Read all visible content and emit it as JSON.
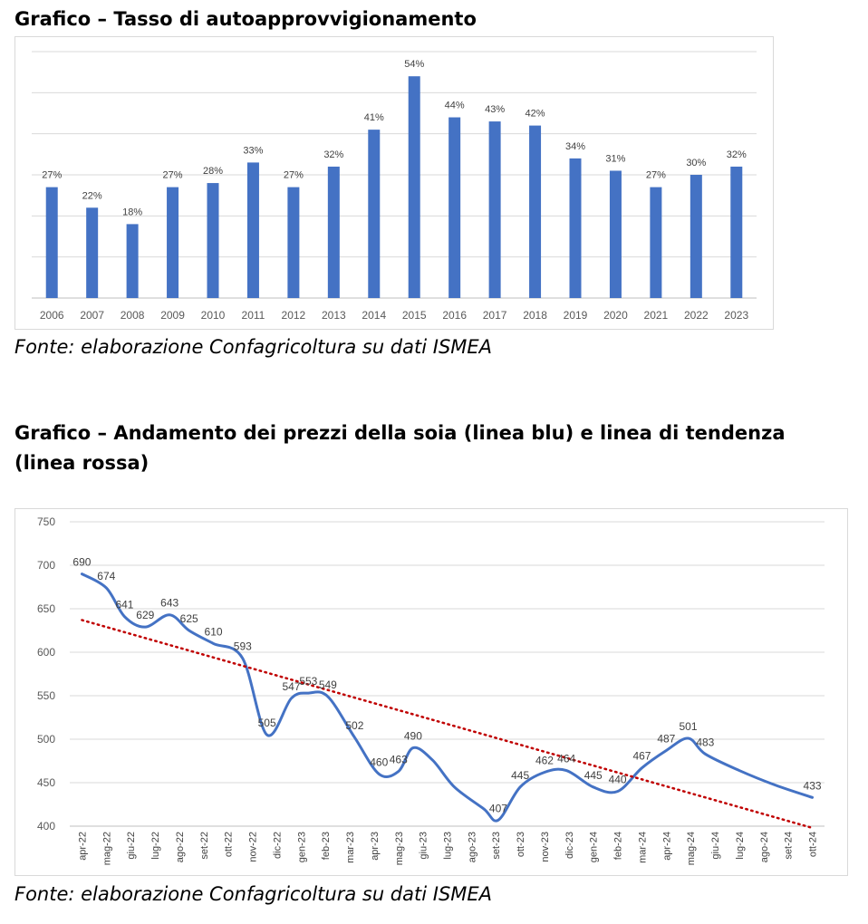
{
  "chart1": {
    "heading": "Grafico – Tasso di autoapprovvigionamento",
    "source": "Fonte: elaborazione Confagricoltura su dati ISMEA",
    "chart_data": {
      "type": "bar",
      "categories": [
        "2006",
        "2007",
        "2008",
        "2009",
        "2010",
        "2011",
        "2012",
        "2013",
        "2014",
        "2015",
        "2016",
        "2017",
        "2018",
        "2019",
        "2020",
        "2021",
        "2022",
        "2023"
      ],
      "values": [
        27,
        22,
        18,
        27,
        28,
        33,
        27,
        32,
        41,
        54,
        44,
        43,
        42,
        34,
        31,
        27,
        30,
        32
      ],
      "data_labels": [
        "27%",
        "22%",
        "18%",
        "27%",
        "28%",
        "33%",
        "27%",
        "32%",
        "41%",
        "54%",
        "44%",
        "43%",
        "42%",
        "34%",
        "31%",
        "27%",
        "30%",
        "32%"
      ],
      "ylim": [
        0,
        60
      ],
      "gridlines": [
        0,
        10,
        20,
        30,
        40,
        50,
        60
      ],
      "grid": true,
      "bar_color": "#4472c4"
    }
  },
  "chart2": {
    "heading_line1": "Grafico – Andamento dei prezzi della soia (linea blu) e linea di tendenza",
    "heading_line2": "(linea rossa)",
    "source": "Fonte: elaborazione Confagricoltura su dati ISMEA",
    "chart_data": {
      "type": "line",
      "x": [
        "apr-22",
        "mag-22",
        "giu-22",
        "lug-22",
        "ago-22",
        "set-22",
        "ott-22",
        "nov-22",
        "dic-22",
        "gen-23",
        "feb-23",
        "mar-23",
        "apr-23",
        "mag-23",
        "giu-23",
        "lug-23",
        "ago-23",
        "set-23",
        "ott-23",
        "nov-23",
        "dic-23",
        "gen-24",
        "feb-24",
        "mar-24",
        "apr-24",
        "mag-24",
        "giu-24",
        "lug-24",
        "ago-24",
        "set-24",
        "ott-24"
      ],
      "ylim": [
        400,
        750
      ],
      "yticks": [
        "400",
        "450",
        "500",
        "550",
        "600",
        "650",
        "700",
        "750"
      ],
      "grid": true,
      "series": [
        {
          "color": "#4472c4",
          "points": [
            [
              0,
              690
            ],
            [
              1,
              674
            ],
            [
              1.75,
              641
            ],
            [
              2.6,
              629
            ],
            [
              3.6,
              643
            ],
            [
              4.4,
              625
            ],
            [
              5.4,
              610
            ],
            [
              6.6,
              593
            ],
            [
              7.6,
              505
            ],
            [
              8.6,
              547
            ],
            [
              9.3,
              553
            ],
            [
              10.1,
              549
            ],
            [
              11.2,
              502
            ],
            [
              12.2,
              460
            ],
            [
              13,
              463
            ],
            [
              13.6,
              490
            ],
            [
              14.4,
              476
            ],
            [
              15.3,
              445
            ],
            [
              16.5,
              420
            ],
            [
              17.1,
              407
            ],
            [
              18,
              445
            ],
            [
              19,
              462
            ],
            [
              19.9,
              464
            ],
            [
              21,
              445
            ],
            [
              22,
              440
            ],
            [
              23,
              467
            ],
            [
              24,
              487
            ],
            [
              24.9,
              501
            ],
            [
              25.6,
              483
            ],
            [
              27,
              464
            ],
            [
              28.5,
              447
            ],
            [
              30,
              433
            ]
          ],
          "labels": [
            {
              "i": 0,
              "text": "690"
            },
            {
              "i": 1,
              "text": "674"
            },
            {
              "i": 2,
              "text": "641"
            },
            {
              "i": 3,
              "text": "629"
            },
            {
              "i": 4,
              "text": "643"
            },
            {
              "i": 5,
              "text": "625"
            },
            {
              "i": 6,
              "text": "610"
            },
            {
              "i": 7,
              "text": "593"
            },
            {
              "i": 8,
              "text": "505"
            },
            {
              "i": 9,
              "text": "547"
            },
            {
              "i": 10,
              "text": "553"
            },
            {
              "i": 11,
              "text": "549"
            },
            {
              "i": 12,
              "text": "502"
            },
            {
              "i": 13,
              "text": "460"
            },
            {
              "i": 14,
              "text": "463"
            },
            {
              "i": 15,
              "text": "490"
            },
            {
              "i": 19,
              "text": "407"
            },
            {
              "i": 20,
              "text": "445"
            },
            {
              "i": 21,
              "text": "462"
            },
            {
              "i": 22,
              "text": "464"
            },
            {
              "i": 23,
              "text": "445"
            },
            {
              "i": 24,
              "text": "440"
            },
            {
              "i": 25,
              "text": "467"
            },
            {
              "i": 26,
              "text": "487"
            },
            {
              "i": 27,
              "text": "501"
            },
            {
              "i": 28,
              "text": "483"
            },
            {
              "i": 31,
              "text": "433"
            }
          ]
        },
        {
          "color": "#c00000",
          "style": "dotted",
          "points": [
            [
              0,
              637
            ],
            [
              30,
              398
            ]
          ]
        }
      ]
    }
  }
}
